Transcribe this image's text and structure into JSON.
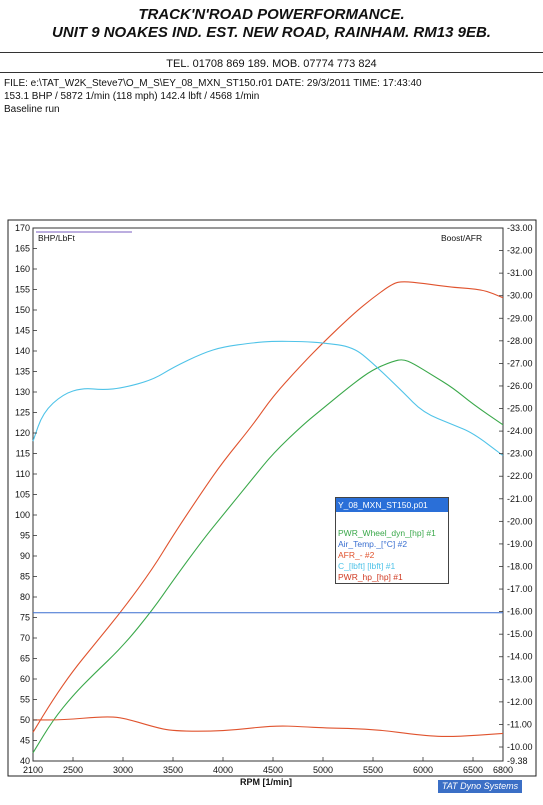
{
  "header": {
    "company_line1": "TRACK'N'ROAD POWERFORMANCE.",
    "company_line2": "UNIT 9 NOAKES IND. EST. NEW ROAD, RAINHAM. RM13 9EB.",
    "phone": "TEL. 01708 869 189. MOB. 07774 773 824"
  },
  "run_info": {
    "file_line": "FILE: e:\\TAT_W2K_Steve7\\O_M_S\\EY_08_MXN_ST150.r01  DATE: 29/3/2011  TIME: 17:43:40",
    "result_line": "153.1 BHP / 5872 1/min (118 mph)    142.4 lbft / 4568 1/min",
    "note": "Baseline run"
  },
  "legend": {
    "selected": "Y_08_MXN_ST150.p01",
    "entries": [
      {
        "label": "PWR_Wheel_dyn_[hp] #1",
        "color": "#3aa84a"
      },
      {
        "label": "Air_Temp._[°C] #2",
        "color": "#3a6fd0"
      },
      {
        "label": "AFR_- #2",
        "color": "#e0532e"
      },
      {
        "label": "C_[lbft] [lbft] #1",
        "color": "#4fc3e8"
      },
      {
        "label": "PWR_hp_[hp] #1",
        "color": "#e0532e"
      }
    ]
  },
  "brand": {
    "prefix": "TAT",
    "name": "Dyno Systems"
  },
  "chart_data": {
    "type": "line",
    "xlabel": "RPM  [1/min]",
    "left_axis_label": "BHP/LbFt",
    "right_axis_label": "Boost/AFR",
    "xlim": [
      2100,
      6800
    ],
    "ylim_left": [
      40,
      170
    ],
    "ylim_right": [
      9.38,
      33.0
    ],
    "x_ticks": [
      2100,
      2500,
      3000,
      3500,
      4000,
      4500,
      5000,
      5500,
      6000,
      6500,
      6800
    ],
    "y_ticks_left": [
      40,
      45,
      50,
      55,
      60,
      65,
      70,
      75,
      80,
      85,
      90,
      95,
      100,
      105,
      110,
      115,
      120,
      125,
      130,
      135,
      140,
      145,
      150,
      155,
      160,
      165,
      170
    ],
    "y_ticks_right": [
      "9.38",
      "10.00",
      "11.00",
      "12.00",
      "13.00",
      "14.00",
      "15.00",
      "16.00",
      "17.00",
      "18.00",
      "19.00",
      "20.00",
      "21.00",
      "22.00",
      "23.00",
      "24.00",
      "25.00",
      "26.00",
      "27.00",
      "28.00",
      "29.00",
      "30.00",
      "31.00",
      "32.00",
      "33.00"
    ],
    "series": [
      {
        "name": "PWR_hp_[hp] #1",
        "axis": "left",
        "color": "#e0532e",
        "x": [
          2100,
          2300,
          2500,
          2700,
          3000,
          3300,
          3500,
          3800,
          4000,
          4300,
          4500,
          4800,
          5000,
          5300,
          5500,
          5700,
          5800,
          6000,
          6300,
          6600,
          6800
        ],
        "y": [
          47,
          55,
          62,
          68,
          77,
          87,
          95,
          106,
          113,
          122,
          129,
          137,
          142,
          149,
          153,
          156.5,
          157,
          156.5,
          155.5,
          155,
          153
        ]
      },
      {
        "name": "PWR_Wheel_dyn_[hp] #1",
        "axis": "left",
        "color": "#3aa84a",
        "x": [
          2100,
          2300,
          2500,
          2700,
          3000,
          3300,
          3500,
          3800,
          4000,
          4300,
          4500,
          4800,
          5000,
          5300,
          5500,
          5700,
          5800,
          5900,
          6100,
          6300,
          6500,
          6800
        ],
        "y": [
          42,
          50,
          56,
          61,
          68,
          77,
          84,
          94,
          100,
          109,
          115,
          122,
          126,
          132,
          135.5,
          137.5,
          138,
          137,
          134,
          131,
          127,
          122
        ]
      },
      {
        "name": "C_[lbft] [lbft] #1",
        "axis": "left",
        "color": "#4fc3e8",
        "x": [
          2100,
          2200,
          2400,
          2600,
          2800,
          3000,
          3300,
          3500,
          3800,
          4000,
          4300,
          4500,
          4800,
          5000,
          5300,
          5500,
          5800,
          6000,
          6300,
          6500,
          6800
        ],
        "y": [
          118,
          125,
          129.5,
          131,
          130.5,
          131,
          133,
          136,
          139.5,
          141,
          142,
          142.4,
          142.3,
          142,
          141,
          137,
          130,
          125,
          122,
          120,
          114.5
        ]
      },
      {
        "name": "AFR_- #2",
        "axis": "right",
        "color": "#e0532e",
        "x": [
          2100,
          2400,
          2800,
          3000,
          3300,
          3500,
          4000,
          4500,
          4800,
          5000,
          5500,
          6000,
          6300,
          6800
        ],
        "y": [
          11.2,
          11.2,
          11.35,
          11.3,
          10.9,
          10.7,
          10.7,
          10.95,
          10.9,
          10.85,
          10.8,
          10.5,
          10.45,
          10.6
        ]
      },
      {
        "name": "Air_Temp._[°C] #2",
        "axis": "right",
        "color": "#3a6fd0",
        "x": [
          2100,
          6800
        ],
        "y": [
          15.95,
          15.95
        ]
      }
    ]
  }
}
